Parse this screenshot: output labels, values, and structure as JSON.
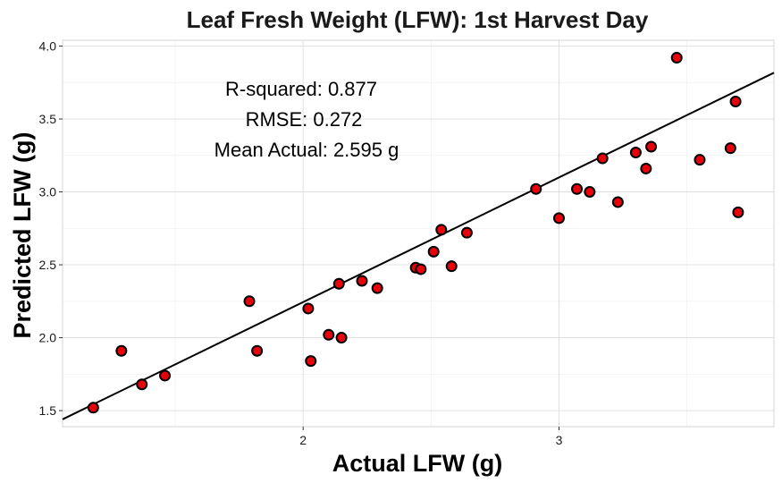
{
  "chart_data": {
    "type": "scatter",
    "title": "Leaf Fresh Weight (LFW): 1st Harvest Day",
    "xlabel": "Actual LFW (g)",
    "ylabel": "Predicted LFW (g)",
    "xlim": [
      1.06,
      3.84
    ],
    "ylim": [
      1.39,
      4.04
    ],
    "x_ticks": [
      2,
      3
    ],
    "x_tick_labels": [
      "2",
      "3"
    ],
    "y_ticks": [
      1.5,
      2.0,
      2.5,
      3.0,
      3.5,
      4.0
    ],
    "y_tick_labels": [
      "1.5",
      "2.0",
      "2.5",
      "3.0",
      "3.5",
      "4.0"
    ],
    "grid": true,
    "point_color": "#e8000b",
    "point_edge_color": "#000000",
    "line_color": "#000000",
    "fit_line": {
      "slope": 0.855,
      "intercept": 0.534
    },
    "annotations": [
      "R-squared:  0.877",
      "RMSE:  0.272",
      "Mean Actual:  2.595 g"
    ],
    "points": [
      {
        "x": 1.18,
        "y": 1.52
      },
      {
        "x": 1.29,
        "y": 1.91
      },
      {
        "x": 1.37,
        "y": 1.68
      },
      {
        "x": 1.46,
        "y": 1.74
      },
      {
        "x": 1.79,
        "y": 2.25
      },
      {
        "x": 1.82,
        "y": 1.91
      },
      {
        "x": 2.02,
        "y": 2.2
      },
      {
        "x": 2.03,
        "y": 1.84
      },
      {
        "x": 2.1,
        "y": 2.02
      },
      {
        "x": 2.14,
        "y": 2.37
      },
      {
        "x": 2.15,
        "y": 2.0
      },
      {
        "x": 2.23,
        "y": 2.39
      },
      {
        "x": 2.29,
        "y": 2.34
      },
      {
        "x": 2.44,
        "y": 2.48
      },
      {
        "x": 2.46,
        "y": 2.47
      },
      {
        "x": 2.51,
        "y": 2.59
      },
      {
        "x": 2.54,
        "y": 2.74
      },
      {
        "x": 2.58,
        "y": 2.49
      },
      {
        "x": 2.64,
        "y": 2.72
      },
      {
        "x": 2.91,
        "y": 3.02
      },
      {
        "x": 3.0,
        "y": 2.82
      },
      {
        "x": 3.07,
        "y": 3.02
      },
      {
        "x": 3.12,
        "y": 3.0
      },
      {
        "x": 3.17,
        "y": 3.23
      },
      {
        "x": 3.23,
        "y": 2.93
      },
      {
        "x": 3.3,
        "y": 3.27
      },
      {
        "x": 3.34,
        "y": 3.16
      },
      {
        "x": 3.36,
        "y": 3.31
      },
      {
        "x": 3.46,
        "y": 3.92
      },
      {
        "x": 3.55,
        "y": 3.22
      },
      {
        "x": 3.67,
        "y": 3.3
      },
      {
        "x": 3.69,
        "y": 3.62
      },
      {
        "x": 3.7,
        "y": 2.86
      }
    ]
  }
}
